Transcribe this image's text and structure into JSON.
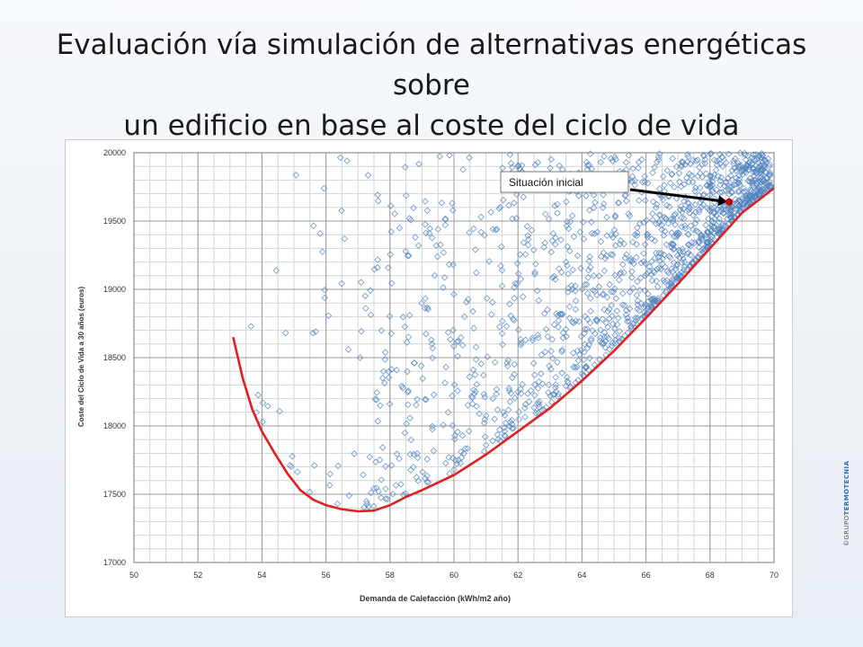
{
  "slide": {
    "title_line1": "Evaluación vía simulación de alternativas energéticas sobre",
    "title_line2": "un edificio en base al coste del ciclo de vida"
  },
  "watermark": {
    "prefix": "©GRUPO",
    "brand": "TERMOTECNIA"
  },
  "chart_data": {
    "type": "scatter",
    "xlabel": "Demanda de Calefacción  (kWh/m2 año)",
    "ylabel": "Coste del Ciclo de Vida a 30 años (euros)",
    "xlim": [
      50,
      70
    ],
    "ylim": [
      17000,
      20000
    ],
    "x_ticks": [
      50,
      52,
      54,
      56,
      58,
      60,
      62,
      64,
      66,
      68,
      70
    ],
    "y_ticks": [
      17000,
      17500,
      18000,
      18500,
      19000,
      19500,
      20000
    ],
    "grid": true,
    "colors": {
      "points": "#4f81bd",
      "frontier": "#e02020",
      "marker": "#cc0000",
      "arrow": "#000000"
    },
    "series": [
      {
        "kind": "frontier-curve",
        "x": [
          53.1,
          53.4,
          53.7,
          54.0,
          54.4,
          54.8,
          55.2,
          55.6,
          56.0,
          56.5,
          57.0,
          57.5,
          58.0,
          58.5,
          59.0,
          60.0,
          61.0,
          62.0,
          63.0,
          64.0,
          65.0,
          66.0,
          67.0,
          68.0,
          69.0,
          70.0
        ],
        "y": [
          18650,
          18350,
          18120,
          17960,
          17800,
          17650,
          17530,
          17460,
          17420,
          17390,
          17375,
          17380,
          17420,
          17480,
          17530,
          17640,
          17790,
          17960,
          18130,
          18330,
          18550,
          18790,
          19040,
          19300,
          19560,
          19740
        ]
      },
      {
        "kind": "simulated-alternatives",
        "x_range": [
          52.9,
          69.9
        ],
        "y_range": [
          17380,
          20000
        ],
        "point_count_approx": 1400
      }
    ],
    "highlight_point": {
      "x": 68.6,
      "y": 19640
    },
    "annotation": {
      "text": "Situación inicial",
      "points_to": {
        "x": 68.6,
        "y": 19640
      }
    }
  }
}
